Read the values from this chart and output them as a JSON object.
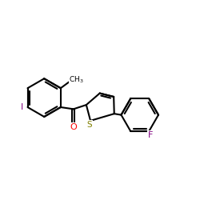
{
  "background": "#ffffff",
  "bond_color": "#000000",
  "bond_lw": 1.5,
  "figsize": [
    2.5,
    2.5
  ],
  "dpi": 100,
  "colors": {
    "O": "#ff0000",
    "S": "#808000",
    "I": "#800080",
    "F": "#800080",
    "C": "#000000"
  }
}
